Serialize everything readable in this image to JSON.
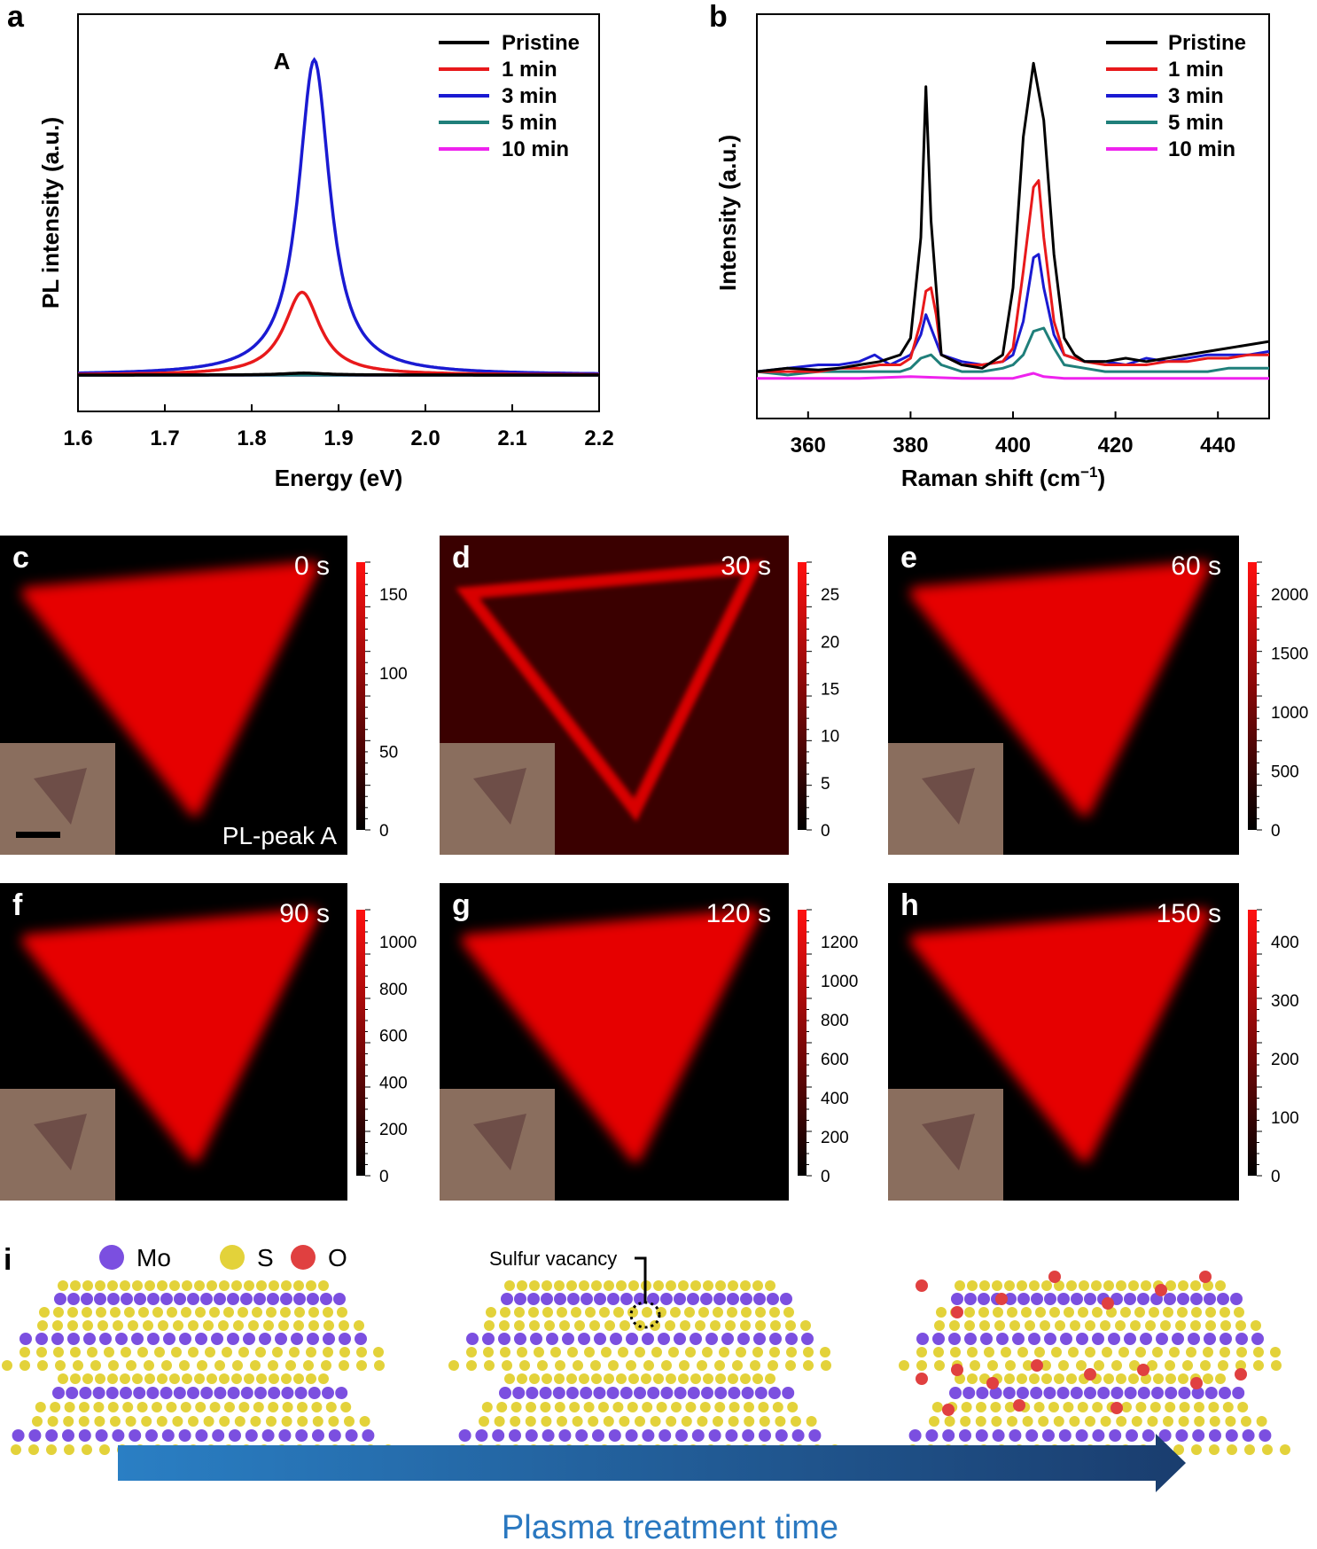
{
  "colors": {
    "pristine": "#000000",
    "min1": "#e8191b",
    "min3": "#1a1ad2",
    "min5": "#1f7f7a",
    "min10": "#ee22ee",
    "map_red": "#e60000",
    "arrow_start": "#2a7fc4",
    "arrow_end": "#1a3d6e",
    "label_blue": "#2a78c0",
    "mo": "#7b4fe0",
    "s": "#e3d23a",
    "o": "#e04040"
  },
  "chart_data": [
    {
      "id": "a",
      "type": "line",
      "panel_letter": "a",
      "xlabel": "Energy (eV)",
      "ylabel": "PL intensity (a.u.)",
      "xlim": [
        1.6,
        2.2
      ],
      "ylim": [
        0,
        1
      ],
      "xticks": [
        "1.6",
        "1.7",
        "1.8",
        "1.9",
        "2.0",
        "2.1",
        "2.2"
      ],
      "annotation": "A",
      "legend_position": "top-right",
      "series": [
        {
          "name": "Pristine",
          "color": "#000000",
          "peak_center": 1.86,
          "amplitude": 0.006,
          "gamma": 0.03,
          "baseline": 0.023
        },
        {
          "name": "1 min",
          "color": "#e8191b",
          "peak_center": 1.858,
          "amplitude": 0.26,
          "gamma": 0.025,
          "baseline": 0.023
        },
        {
          "name": "3 min",
          "color": "#1a1ad2",
          "peak_center": 1.872,
          "amplitude": 0.99,
          "gamma": 0.022,
          "baseline": 0.023
        },
        {
          "name": "5 min",
          "color": "#1f7f7a",
          "peak_center": 1.86,
          "amplitude": 0.0,
          "gamma": 0.03,
          "baseline": 0.023
        },
        {
          "name": "10 min",
          "color": "#ee22ee",
          "peak_center": 1.86,
          "amplitude": 0.0,
          "gamma": 0.03,
          "baseline": 0.023
        }
      ]
    },
    {
      "id": "b",
      "type": "line",
      "panel_letter": "b",
      "xlabel": "Raman shift (cm",
      "xlabel_sup": "−1",
      "xlabel_end": ")",
      "ylabel": "Intensity (a.u.)",
      "xlim": [
        350,
        450
      ],
      "ylim": [
        0,
        1
      ],
      "xticks": [
        "360",
        "380",
        "400",
        "420",
        "440"
      ],
      "legend_position": "top-right",
      "series": [
        {
          "name": "Pristine",
          "color": "#000000",
          "x": [
            350,
            356,
            362,
            366,
            370,
            374,
            378,
            380,
            382,
            383,
            384,
            386,
            390,
            394,
            398,
            400,
            402,
            404,
            406,
            408,
            410,
            412,
            414,
            418,
            422,
            426,
            430,
            434,
            438,
            442,
            446,
            450
          ],
          "y": [
            0.05,
            0.06,
            0.055,
            0.06,
            0.07,
            0.08,
            0.1,
            0.15,
            0.45,
            0.9,
            0.5,
            0.1,
            0.07,
            0.06,
            0.1,
            0.3,
            0.75,
            0.97,
            0.8,
            0.4,
            0.15,
            0.1,
            0.08,
            0.08,
            0.09,
            0.08,
            0.09,
            0.1,
            0.11,
            0.12,
            0.13,
            0.14
          ]
        },
        {
          "name": "1 min",
          "color": "#e8191b",
          "x": [
            350,
            356,
            362,
            366,
            370,
            374,
            378,
            380,
            382,
            383,
            384,
            385,
            386,
            390,
            394,
            398,
            400,
            402,
            404,
            405,
            406,
            408,
            410,
            414,
            418,
            422,
            426,
            430,
            434,
            438,
            442,
            446,
            450
          ],
          "y": [
            0.05,
            0.05,
            0.05,
            0.06,
            0.06,
            0.07,
            0.07,
            0.09,
            0.2,
            0.29,
            0.3,
            0.22,
            0.1,
            0.07,
            0.07,
            0.08,
            0.12,
            0.35,
            0.6,
            0.62,
            0.45,
            0.2,
            0.1,
            0.08,
            0.07,
            0.07,
            0.07,
            0.08,
            0.08,
            0.09,
            0.09,
            0.1,
            0.1
          ]
        },
        {
          "name": "3 min",
          "color": "#1a1ad2",
          "x": [
            350,
            356,
            362,
            366,
            370,
            373,
            376,
            380,
            382,
            383,
            384,
            386,
            390,
            394,
            398,
            400,
            402,
            404,
            405,
            406,
            408,
            410,
            414,
            418,
            422,
            426,
            430,
            434,
            438,
            442,
            446,
            450
          ],
          "y": [
            0.05,
            0.06,
            0.07,
            0.07,
            0.08,
            0.1,
            0.07,
            0.1,
            0.16,
            0.22,
            0.18,
            0.1,
            0.08,
            0.07,
            0.08,
            0.1,
            0.2,
            0.39,
            0.4,
            0.3,
            0.16,
            0.1,
            0.08,
            0.08,
            0.07,
            0.09,
            0.08,
            0.09,
            0.1,
            0.1,
            0.1,
            0.11
          ]
        },
        {
          "name": "5 min",
          "color": "#1f7f7a",
          "x": [
            350,
            356,
            362,
            366,
            370,
            374,
            378,
            380,
            382,
            384,
            386,
            390,
            394,
            398,
            400,
            402,
            404,
            406,
            408,
            410,
            414,
            418,
            422,
            426,
            430,
            434,
            438,
            442,
            446,
            450
          ],
          "y": [
            0.05,
            0.04,
            0.05,
            0.05,
            0.05,
            0.05,
            0.05,
            0.06,
            0.09,
            0.1,
            0.07,
            0.05,
            0.05,
            0.06,
            0.07,
            0.1,
            0.17,
            0.18,
            0.12,
            0.07,
            0.06,
            0.05,
            0.05,
            0.05,
            0.05,
            0.05,
            0.05,
            0.06,
            0.06,
            0.06
          ]
        },
        {
          "name": "10 min",
          "color": "#ee22ee",
          "x": [
            350,
            360,
            370,
            380,
            390,
            400,
            404,
            406,
            410,
            420,
            430,
            440,
            450
          ],
          "y": [
            0.03,
            0.03,
            0.03,
            0.035,
            0.03,
            0.03,
            0.045,
            0.035,
            0.03,
            0.03,
            0.03,
            0.03,
            0.03
          ]
        }
      ]
    },
    {
      "id": "maps",
      "type": "heatmap",
      "panels": [
        {
          "letter": "c",
          "time": "0 s",
          "label": "PL-peak A",
          "colorbar_ticks": [
            "150",
            "100",
            "50",
            "0"
          ],
          "variant": "filled"
        },
        {
          "letter": "d",
          "time": "30 s",
          "label": "",
          "colorbar_ticks": [
            "25",
            "20",
            "15",
            "10",
            "5",
            "0"
          ],
          "variant": "edges"
        },
        {
          "letter": "e",
          "time": "60 s",
          "label": "",
          "colorbar_ticks": [
            "2000",
            "1500",
            "1000",
            "500",
            "0"
          ],
          "variant": "filled"
        },
        {
          "letter": "f",
          "time": "90 s",
          "label": "",
          "colorbar_ticks": [
            "1000",
            "800",
            "600",
            "400",
            "200",
            "0"
          ],
          "variant": "filled"
        },
        {
          "letter": "g",
          "time": "120 s",
          "label": "",
          "colorbar_ticks": [
            "1200",
            "1000",
            "800",
            "600",
            "400",
            "200",
            "0"
          ],
          "variant": "filled"
        },
        {
          "letter": "h",
          "time": "150 s",
          "label": "",
          "colorbar_ticks": [
            "400",
            "300",
            "200",
            "100",
            "0"
          ],
          "variant": "filled"
        }
      ]
    }
  ],
  "schematic": {
    "letter": "i",
    "legend": [
      {
        "label": "Mo",
        "color": "#7b4fe0"
      },
      {
        "label": "S",
        "color": "#e3d23a"
      },
      {
        "label": "O",
        "color": "#e04040"
      }
    ],
    "vacancy_label": "Sulfur vacancy",
    "arrow_label": "Plasma treatment time"
  }
}
